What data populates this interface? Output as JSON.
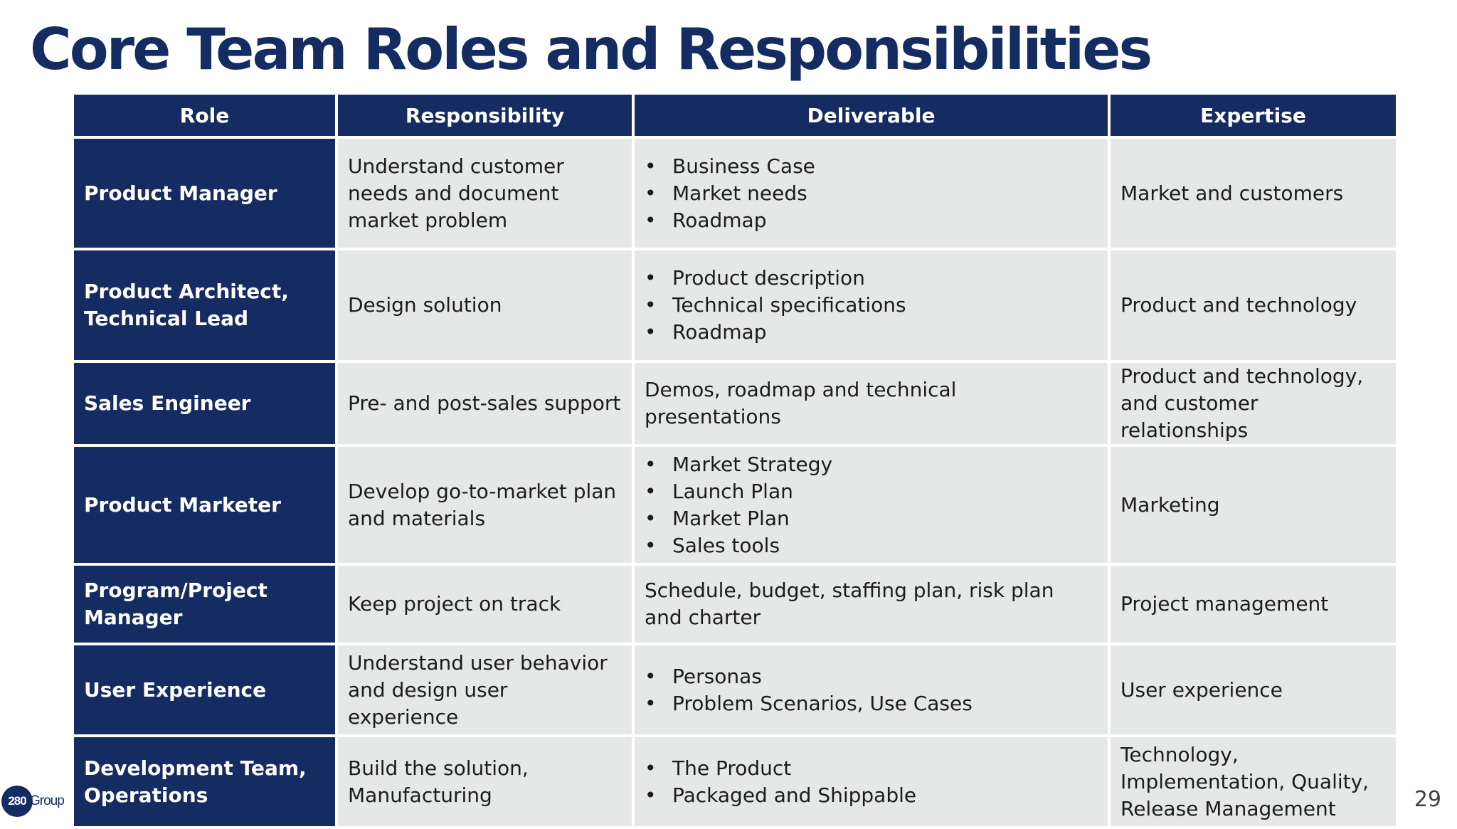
{
  "title": "Core Team Roles and Responsibilities",
  "table": {
    "headers": [
      "Role",
      "Responsibility",
      "Deliverable",
      "Expertise"
    ],
    "rows": [
      {
        "role": "Product Manager",
        "responsibility": "Understand customer needs and document market problem",
        "deliverable_text": "",
        "deliverable_items": [
          "Business Case",
          "Market needs",
          "Roadmap"
        ],
        "expertise": "Market and customers"
      },
      {
        "role": "Product Architect, Technical Lead",
        "responsibility": "Design solution",
        "deliverable_text": "",
        "deliverable_items": [
          "Product description",
          "Technical specifications",
          "Roadmap"
        ],
        "expertise": "Product and technology"
      },
      {
        "role": "Sales Engineer",
        "responsibility": "Pre- and post-sales support",
        "deliverable_text": "Demos, roadmap and technical presentations",
        "deliverable_items": [],
        "expertise": "Product and technology, and customer relationships"
      },
      {
        "role": "Product Marketer",
        "responsibility": "Develop go-to-market plan and materials",
        "deliverable_text": "",
        "deliverable_items": [
          "Market Strategy",
          "Launch Plan",
          "Market Plan",
          "Sales tools"
        ],
        "expertise": "Marketing"
      },
      {
        "role": "Program/Project Manager",
        "responsibility": "Keep project on track",
        "deliverable_text": "Schedule, budget, staffing plan, risk plan and charter",
        "deliverable_items": [],
        "expertise": "Project management"
      },
      {
        "role": "User Experience",
        "responsibility": "Understand user behavior and design user experience",
        "deliverable_text": "",
        "deliverable_items": [
          "Personas",
          "Problem Scenarios, Use Cases"
        ],
        "expertise": "User experience"
      },
      {
        "role": "Development Team, Operations",
        "responsibility": "Build the solution, Manufacturing",
        "deliverable_text": "",
        "deliverable_items": [
          "The Product",
          "Packaged and Shippable"
        ],
        "expertise": "Technology, Implementation, Quality, Release Management"
      }
    ]
  },
  "footer": {
    "logo_mark": "280",
    "logo_word": "Group",
    "page_number": "29"
  },
  "colors": {
    "navy": "#142c61",
    "cell_gray": "#e6e7e7"
  }
}
